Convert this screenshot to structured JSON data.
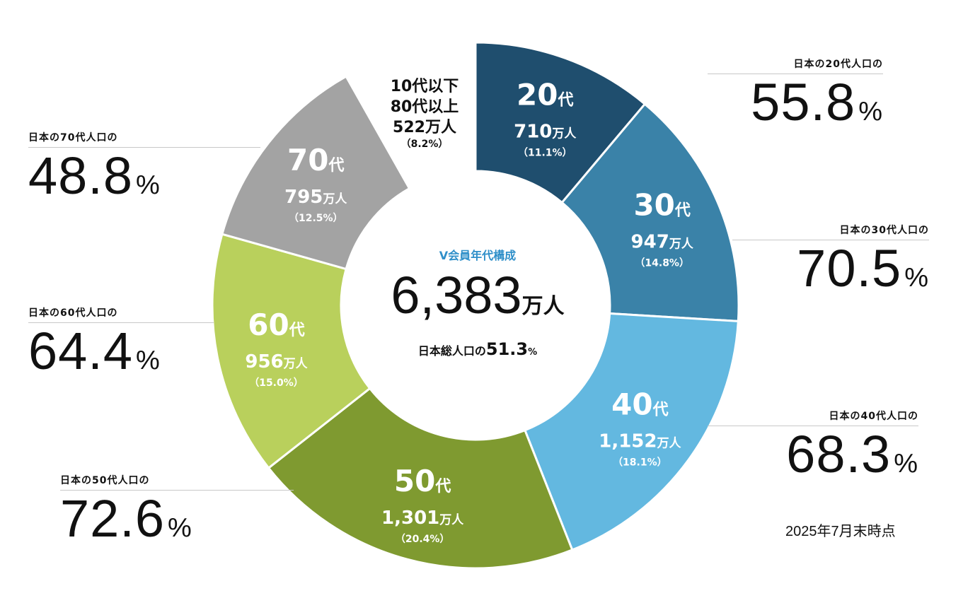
{
  "chart_data": {
    "type": "pie",
    "center": {
      "title": "V会員年代構成",
      "total_value": "6,383",
      "total_unit": "万人",
      "share_prefix": "日本総人口の",
      "share_value": "51.3",
      "share_unit": "%"
    },
    "segments": [
      {
        "label": "20代",
        "age": "20",
        "value": 710,
        "value_text": "710",
        "unit": "万人",
        "percent": "（11.1%）",
        "color": "#1f4e6e"
      },
      {
        "label": "30代",
        "age": "30",
        "value": 947,
        "value_text": "947",
        "unit": "万人",
        "percent": "（14.8%）",
        "color": "#3a82a8"
      },
      {
        "label": "40代",
        "age": "40",
        "value": 1152,
        "value_text": "1,152",
        "unit": "万人",
        "percent": "（18.1%）",
        "color": "#63b8e0"
      },
      {
        "label": "50代",
        "age": "50",
        "value": 1301,
        "value_text": "1,301",
        "unit": "万人",
        "percent": "（20.4%）",
        "color": "#7f9a30"
      },
      {
        "label": "60代",
        "age": "60",
        "value": 956,
        "value_text": "956",
        "unit": "万人",
        "percent": "（15.0%）",
        "color": "#b9d05c"
      },
      {
        "label": "70代",
        "age": "70",
        "value": 795,
        "value_text": "795",
        "unit": "万人",
        "percent": "（12.5%）",
        "color": "#a3a3a3"
      },
      {
        "label": "10代以下 80代以上",
        "age": "",
        "value": 522,
        "value_text": "522",
        "unit": "万人",
        "percent": "（8.2%）",
        "color": "#ffffff"
      }
    ],
    "small_segment_text": {
      "line1": "10代以下",
      "line2": "80代以上",
      "line3": "522万人",
      "line4": "（8.2%）"
    },
    "age_suffix": "代",
    "callouts": [
      {
        "caption": "日本の20代人口の",
        "value": "55.8",
        "unit": "%"
      },
      {
        "caption": "日本の30代人口の",
        "value": "70.5",
        "unit": "%"
      },
      {
        "caption": "日本の40代人口の",
        "value": "68.3",
        "unit": "%"
      },
      {
        "caption": "日本の50代人口の",
        "value": "72.6",
        "unit": "%"
      },
      {
        "caption": "日本の60代人口の",
        "value": "64.4",
        "unit": "%"
      },
      {
        "caption": "日本の70代人口の",
        "value": "48.8",
        "unit": "%"
      }
    ],
    "note": "2025年7月末時点"
  }
}
